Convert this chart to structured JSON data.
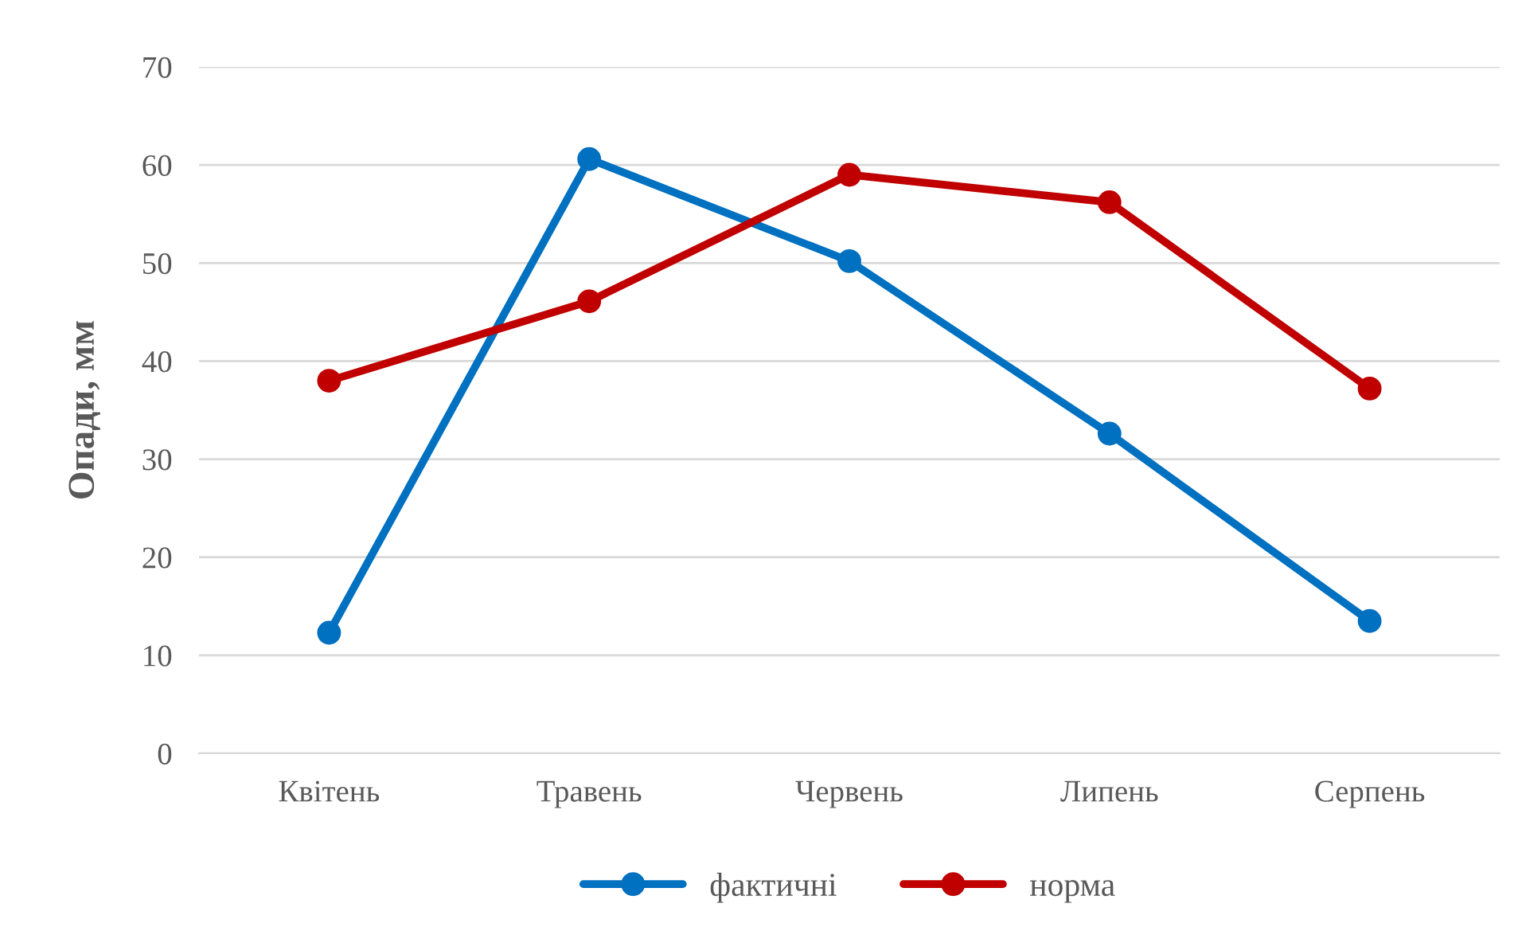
{
  "chart_data": {
    "type": "line",
    "ylabel": "Опади, мм",
    "categories": [
      "Квітень",
      "Травень",
      "Червень",
      "Липень",
      "Серпень"
    ],
    "series": [
      {
        "name": "фактичні",
        "color": "#0070c0",
        "values": [
          12.3,
          60.6,
          50.2,
          32.6,
          13.5
        ]
      },
      {
        "name": "норма",
        "color": "#c00000",
        "values": [
          38.0,
          46.1,
          59.0,
          56.2,
          37.2
        ]
      }
    ],
    "ylim": [
      0,
      70
    ],
    "yticks": [
      0,
      10,
      20,
      30,
      40,
      50,
      60,
      70
    ],
    "grid": "y",
    "legend": "bottom",
    "marker": "circle",
    "line_style": "solid"
  }
}
